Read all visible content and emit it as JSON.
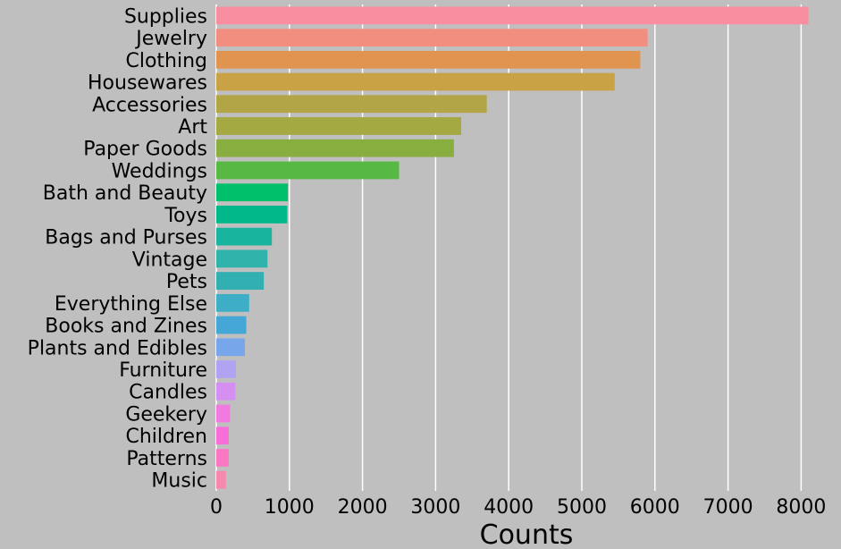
{
  "chart_data": {
    "type": "bar",
    "orientation": "horizontal",
    "xlabel": "Counts",
    "ylabel": "",
    "xlim": [
      0,
      8200
    ],
    "xticks": [
      0,
      1000,
      2000,
      3000,
      4000,
      5000,
      6000,
      7000,
      8000
    ],
    "grid": true,
    "categories": [
      "Supplies",
      "Jewelry",
      "Clothing",
      "Housewares",
      "Accessories",
      "Art",
      "Paper Goods",
      "Weddings",
      "Bath and Beauty",
      "Toys",
      "Bags and Purses",
      "Vintage",
      "Pets",
      "Everything Else",
      "Books and Zines",
      "Plants and Edibles",
      "Furniture",
      "Candles",
      "Geekery",
      "Children",
      "Patterns",
      "Music"
    ],
    "values": [
      8100,
      5900,
      5800,
      5450,
      3700,
      3350,
      3250,
      2500,
      980,
      970,
      760,
      700,
      650,
      450,
      410,
      390,
      270,
      260,
      190,
      170,
      170,
      130
    ],
    "colors": [
      "#f88ea0",
      "#f28e80",
      "#e19450",
      "#c9a245",
      "#b1a545",
      "#a4a942",
      "#89ae40",
      "#57b944",
      "#00c06b",
      "#00b88a",
      "#19b49e",
      "#2fb3aa",
      "#32afb1",
      "#3eaec6",
      "#44a7d6",
      "#78a6ea",
      "#b1a3f2",
      "#d58ff0",
      "#f07adf",
      "#f86ed6",
      "#fa78c3",
      "#f888ae"
    ],
    "background": "#bfbfbf",
    "grid_color": "#ffffff"
  }
}
